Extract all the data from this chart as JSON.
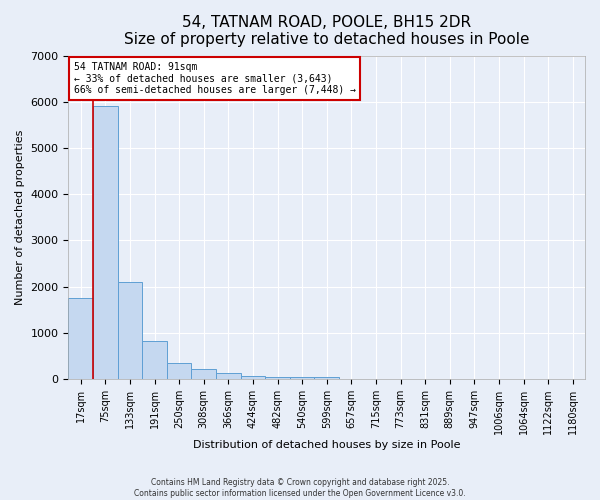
{
  "title": "54, TATNAM ROAD, POOLE, BH15 2DR",
  "subtitle": "Size of property relative to detached houses in Poole",
  "xlabel": "Distribution of detached houses by size in Poole",
  "ylabel": "Number of detached properties",
  "categories": [
    "17sqm",
    "75sqm",
    "133sqm",
    "191sqm",
    "250sqm",
    "308sqm",
    "366sqm",
    "424sqm",
    "482sqm",
    "540sqm",
    "599sqm",
    "657sqm",
    "715sqm",
    "773sqm",
    "831sqm",
    "889sqm",
    "947sqm",
    "1006sqm",
    "1064sqm",
    "1122sqm",
    "1180sqm"
  ],
  "values": [
    1750,
    5900,
    2100,
    820,
    360,
    220,
    130,
    80,
    50,
    50,
    50,
    0,
    0,
    0,
    0,
    0,
    0,
    0,
    0,
    0,
    0
  ],
  "bar_color": "#c5d8f0",
  "bar_edge_color": "#5f9fd4",
  "red_line_x": 0.5,
  "ylim": [
    0,
    7000
  ],
  "annotation_text": "54 TATNAM ROAD: 91sqm\n← 33% of detached houses are smaller (3,643)\n66% of semi-detached houses are larger (7,448) →",
  "annotation_box_color": "#ffffff",
  "annotation_box_edge": "#cc0000",
  "background_color": "#e8eef8",
  "grid_color": "#ffffff",
  "title_fontsize": 11,
  "tick_fontsize": 7,
  "ylabel_fontsize": 8,
  "xlabel_fontsize": 8,
  "annotation_fontsize": 7,
  "footer_text": "Contains HM Land Registry data © Crown copyright and database right 2025.\nContains public sector information licensed under the Open Government Licence v3.0."
}
